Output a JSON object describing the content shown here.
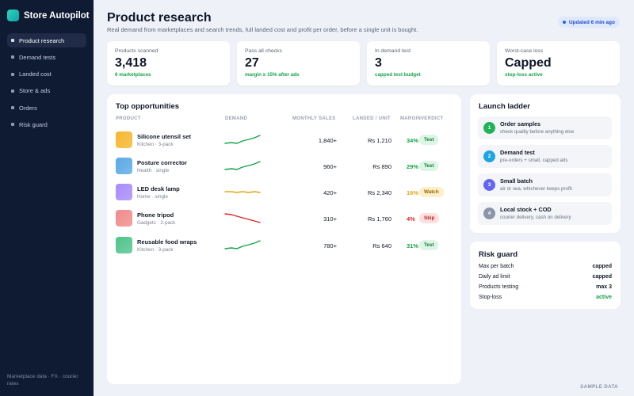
{
  "app": {
    "name": "Store Autopilot",
    "brand_color": "#14b8a6"
  },
  "sidebar": {
    "items": [
      {
        "label": "Product research",
        "active": true
      },
      {
        "label": "Demand tests",
        "active": false
      },
      {
        "label": "Landed cost",
        "active": false
      },
      {
        "label": "Store & ads",
        "active": false
      },
      {
        "label": "Orders",
        "active": false
      },
      {
        "label": "Risk guard",
        "active": false
      }
    ],
    "footer": "Marketplace data · FX · courier rates"
  },
  "header": {
    "title": "Product research",
    "subtitle": "Real demand from marketplaces and search trends, full landed cost and profit per order, before a single unit is bought.",
    "updated": "Updated 6 min ago"
  },
  "kpis": [
    {
      "label": "Products scanned",
      "value": "3,418",
      "sub": "6 marketplaces"
    },
    {
      "label": "Pass all checks",
      "value": "27",
      "sub": "margin ≥ 15% after ads"
    },
    {
      "label": "In demand test",
      "value": "3",
      "sub": "capped test budget"
    },
    {
      "label": "Worst-case loss",
      "value": "Capped",
      "sub": "stop-loss active"
    }
  ],
  "opportunities": {
    "title": "Top opportunities",
    "columns": {
      "product": "PRODUCT",
      "demand": "DEMAND",
      "sales": "MONTHLY SALES",
      "landed": "LANDED / UNIT",
      "margin": "MARGIN",
      "verdict": "VERDICT"
    },
    "rows": [
      {
        "name": "Silicone utensil set",
        "category": "Kitchen · 3-pack",
        "sales": "1,840+",
        "landed": "Rs 1,210",
        "margin": "34%",
        "verdict": "Test",
        "trend": "up",
        "thumb_color": "#f5b72e"
      },
      {
        "name": "Posture corrector",
        "category": "Health · single",
        "sales": "960+",
        "landed": "Rs 890",
        "margin": "29%",
        "verdict": "Test",
        "trend": "up",
        "thumb_color": "#5aa9e6"
      },
      {
        "name": "LED desk lamp",
        "category": "Home · single",
        "sales": "420+",
        "landed": "Rs 2,340",
        "margin": "16%",
        "verdict": "Watch",
        "trend": "flat",
        "thumb_color": "#a78bfa"
      },
      {
        "name": "Phone tripod",
        "category": "Gadgets · 2-pack",
        "sales": "310+",
        "landed": "Rs 1,760",
        "margin": "4%",
        "verdict": "Skip",
        "trend": "down",
        "thumb_color": "#f08a8a"
      },
      {
        "name": "Reusable food wraps",
        "category": "Kitchen · 3-pack",
        "sales": "780+",
        "landed": "Rs 640",
        "margin": "31%",
        "verdict": "Test",
        "trend": "up",
        "thumb_color": "#4fc48a"
      }
    ]
  },
  "ladder": {
    "title": "Launch ladder",
    "steps": [
      {
        "num": "1",
        "title": "Order samples",
        "sub": "check quality before anything else",
        "color": "#22b35a"
      },
      {
        "num": "2",
        "title": "Demand test",
        "sub": "pre-orders + small, capped ads",
        "color": "#1ea5e0"
      },
      {
        "num": "3",
        "title": "Small batch",
        "sub": "air or sea, whichever keeps profit",
        "color": "#6366f1"
      },
      {
        "num": "4",
        "title": "Local stock + COD",
        "sub": "courier delivery, cash on delivery",
        "color": "#8b95a7"
      }
    ]
  },
  "risk": {
    "title": "Risk guard",
    "rows": [
      {
        "label": "Max per batch",
        "value": "capped"
      },
      {
        "label": "Daily ad limit",
        "value": "capped"
      },
      {
        "label": "Products testing",
        "value": "max 3"
      },
      {
        "label": "Stop-loss",
        "value": "active"
      }
    ]
  },
  "footer": {
    "sample": "SAMPLE DATA"
  },
  "colors": {
    "up": "#16a34a",
    "flat": "#e0a614",
    "down": "#dc2626"
  }
}
